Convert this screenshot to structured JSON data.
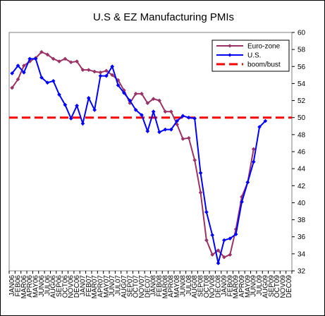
{
  "chart_data": {
    "type": "line",
    "title": "U.S & EZ Manufacturing PMIs",
    "xlabel": "",
    "ylabel": "",
    "ylim": [
      32,
      60
    ],
    "yticks": [
      32,
      34,
      36,
      38,
      40,
      42,
      44,
      46,
      48,
      50,
      52,
      54,
      56,
      58,
      60
    ],
    "x": [
      "JAN06",
      "FEB06",
      "MAR06",
      "APR06",
      "MAY06",
      "JUN06",
      "JUL06",
      "AUG06",
      "SEP06",
      "OCT06",
      "NOV06",
      "DEC06",
      "JAN07",
      "FEB07",
      "MAR07",
      "APR07",
      "MAY07",
      "JUN07",
      "JUL07",
      "AUG07",
      "SEP07",
      "OCT07",
      "NOV07",
      "DEC07",
      "JAN08",
      "FEB08",
      "MAR08",
      "APR08",
      "MAY08",
      "JUN08",
      "JUL08",
      "AUG08",
      "SEP08",
      "OCT08",
      "NOV08",
      "DEC08",
      "JAN09",
      "FEB09",
      "MAR09",
      "APR09",
      "MAY09",
      "JUN09",
      "JUL09",
      "AUG09",
      "SEP09",
      "OCT09",
      "NOV09",
      "DEC09"
    ],
    "grid": false,
    "legend": "top-right",
    "series": [
      {
        "name": "Euro-zone",
        "color": "#993366",
        "marker": "diamond",
        "values": [
          53.5,
          54.5,
          56.1,
          56.6,
          57.0,
          57.7,
          57.4,
          56.9,
          56.6,
          56.9,
          56.5,
          56.6,
          55.6,
          55.6,
          55.4,
          55.3,
          55.5,
          55.0,
          54.4,
          53.2,
          51.7,
          52.8,
          52.8,
          51.7,
          52.2,
          52.0,
          50.7,
          50.7,
          49.2,
          47.5,
          47.6,
          45.0,
          41.2,
          35.6,
          33.9,
          34.4,
          33.6,
          33.9,
          36.9,
          40.7,
          42.4,
          46.3,
          null,
          null,
          null,
          null,
          null,
          null
        ]
      },
      {
        "name": "U.S.",
        "color": "#0000FF",
        "marker": "diamond",
        "values": [
          55.2,
          56.1,
          55.3,
          56.9,
          56.9,
          54.7,
          54.1,
          54.3,
          52.7,
          51.5,
          49.9,
          51.4,
          49.3,
          52.3,
          50.9,
          54.9,
          54.9,
          56.0,
          53.8,
          52.9,
          52.0,
          50.9,
          50.3,
          48.4,
          50.7,
          48.3,
          48.6,
          48.6,
          49.6,
          50.2,
          50.0,
          49.9,
          43.5,
          38.9,
          36.2,
          32.9,
          35.6,
          35.8,
          36.3,
          40.1,
          42.4,
          44.8,
          48.9,
          49.6,
          null,
          null,
          null,
          null
        ]
      },
      {
        "name": "boom/bust",
        "color": "#FF0000",
        "dashed": true,
        "values": [
          50,
          50,
          50,
          50,
          50,
          50,
          50,
          50,
          50,
          50,
          50,
          50,
          50,
          50,
          50,
          50,
          50,
          50,
          50,
          50,
          50,
          50,
          50,
          50,
          50,
          50,
          50,
          50,
          50,
          50,
          50,
          50,
          50,
          50,
          50,
          50,
          50,
          50,
          50,
          50,
          50,
          50,
          50,
          50,
          50,
          50,
          50,
          50
        ]
      }
    ]
  }
}
